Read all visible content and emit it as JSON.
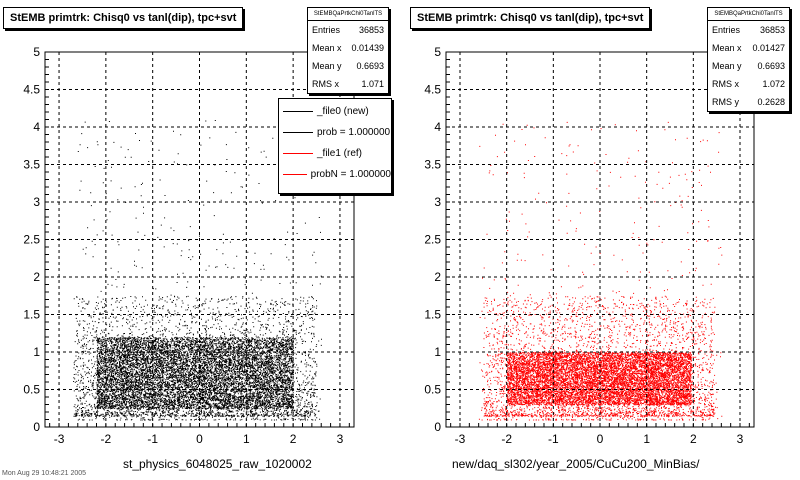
{
  "footer_text": "Mon Aug 29 10:48:21 2005",
  "chart_data": [
    {
      "type": "scatter",
      "title": "StEMB primtrk: Chisq0 vs tanl(dip), tpc+svt",
      "xlabel": "st_physics_6048025_raw_1020002",
      "ylabel": "",
      "xlim": [
        -3.3,
        3.3
      ],
      "ylim": [
        0,
        5
      ],
      "xticks": [
        "-3",
        "-2",
        "-1",
        "0",
        "1",
        "2",
        "3"
      ],
      "yticks": [
        "0",
        "0.5",
        "1",
        "1.5",
        "2",
        "2.5",
        "3",
        "3.5",
        "4",
        "4.5",
        "5"
      ],
      "grid": true,
      "point_color": "#000000",
      "dense_region": {
        "x": [
          -2.2,
          2.0
        ],
        "y": [
          0.25,
          1.2
        ]
      },
      "stats": {
        "header": "StEMBQaPrtkChi0TanlTS",
        "rows": [
          {
            "label": "Entries",
            "value": "36853"
          },
          {
            "label": "Mean x",
            "value": "0.01439"
          },
          {
            "label": "Mean y",
            "value": "0.6693"
          },
          {
            "label": "RMS x",
            "value": "1.071"
          }
        ]
      },
      "legend": {
        "placement": "top-right",
        "entries": [
          {
            "text": "_file0 (new)",
            "color": "#000000"
          },
          {
            "text": "prob = 1.000000",
            "color": "#000000"
          },
          {
            "text": "_file1 (ref)",
            "color": "#ff0000"
          },
          {
            "text": "probN = 1.000000",
            "color": "#ff0000"
          }
        ]
      }
    },
    {
      "type": "scatter",
      "title": "StEMB primtrk: Chisq0 vs tanl(dip), tpc+svt",
      "xlabel": "new/daq_sl302/year_2005/CuCu200_MinBias/",
      "ylabel": "",
      "xlim": [
        -3.3,
        3.3
      ],
      "ylim": [
        0,
        5
      ],
      "xticks": [
        "-3",
        "-2",
        "-1",
        "0",
        "1",
        "2",
        "3"
      ],
      "yticks": [
        "0",
        "0.5",
        "1",
        "1.5",
        "2",
        "2.5",
        "3",
        "3.5",
        "4",
        "4.5",
        "5"
      ],
      "grid": true,
      "point_color": "#ff0000",
      "dense_region": {
        "x": [
          -2.0,
          1.95
        ],
        "y": [
          0.3,
          1.0
        ]
      },
      "stats": {
        "header": "StEMBQaPrtkChi0TanlTS",
        "rows": [
          {
            "label": "Entries",
            "value": "36853"
          },
          {
            "label": "Mean x",
            "value": "0.01427"
          },
          {
            "label": "Mean y",
            "value": "0.6693"
          },
          {
            "label": "RMS x",
            "value": "1.072"
          },
          {
            "label": "RMS y",
            "value": "0.2628"
          }
        ]
      }
    }
  ]
}
